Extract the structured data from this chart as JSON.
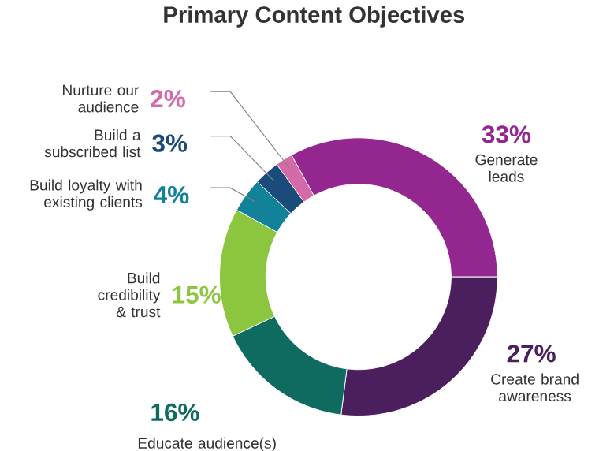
{
  "chart_data": {
    "type": "donut",
    "title": "Primary Content Objectives",
    "categories": [
      "Generate leads",
      "Create brand awareness",
      "Educate audience(s)",
      "Build credibility & trust",
      "Build loyalty with existing clients",
      "Build a subscribed list",
      "Nurture our audience"
    ],
    "values": [
      33,
      27,
      16,
      15,
      4,
      3,
      2
    ],
    "colors": [
      "#93278f",
      "#4b1f5e",
      "#0f6b5f",
      "#8cc63f",
      "#12819a",
      "#1b4b7a",
      "#d46aa8"
    ],
    "value_labels": [
      "33%",
      "27%",
      "16%",
      "15%",
      "4%",
      "3%",
      "2%"
    ]
  }
}
